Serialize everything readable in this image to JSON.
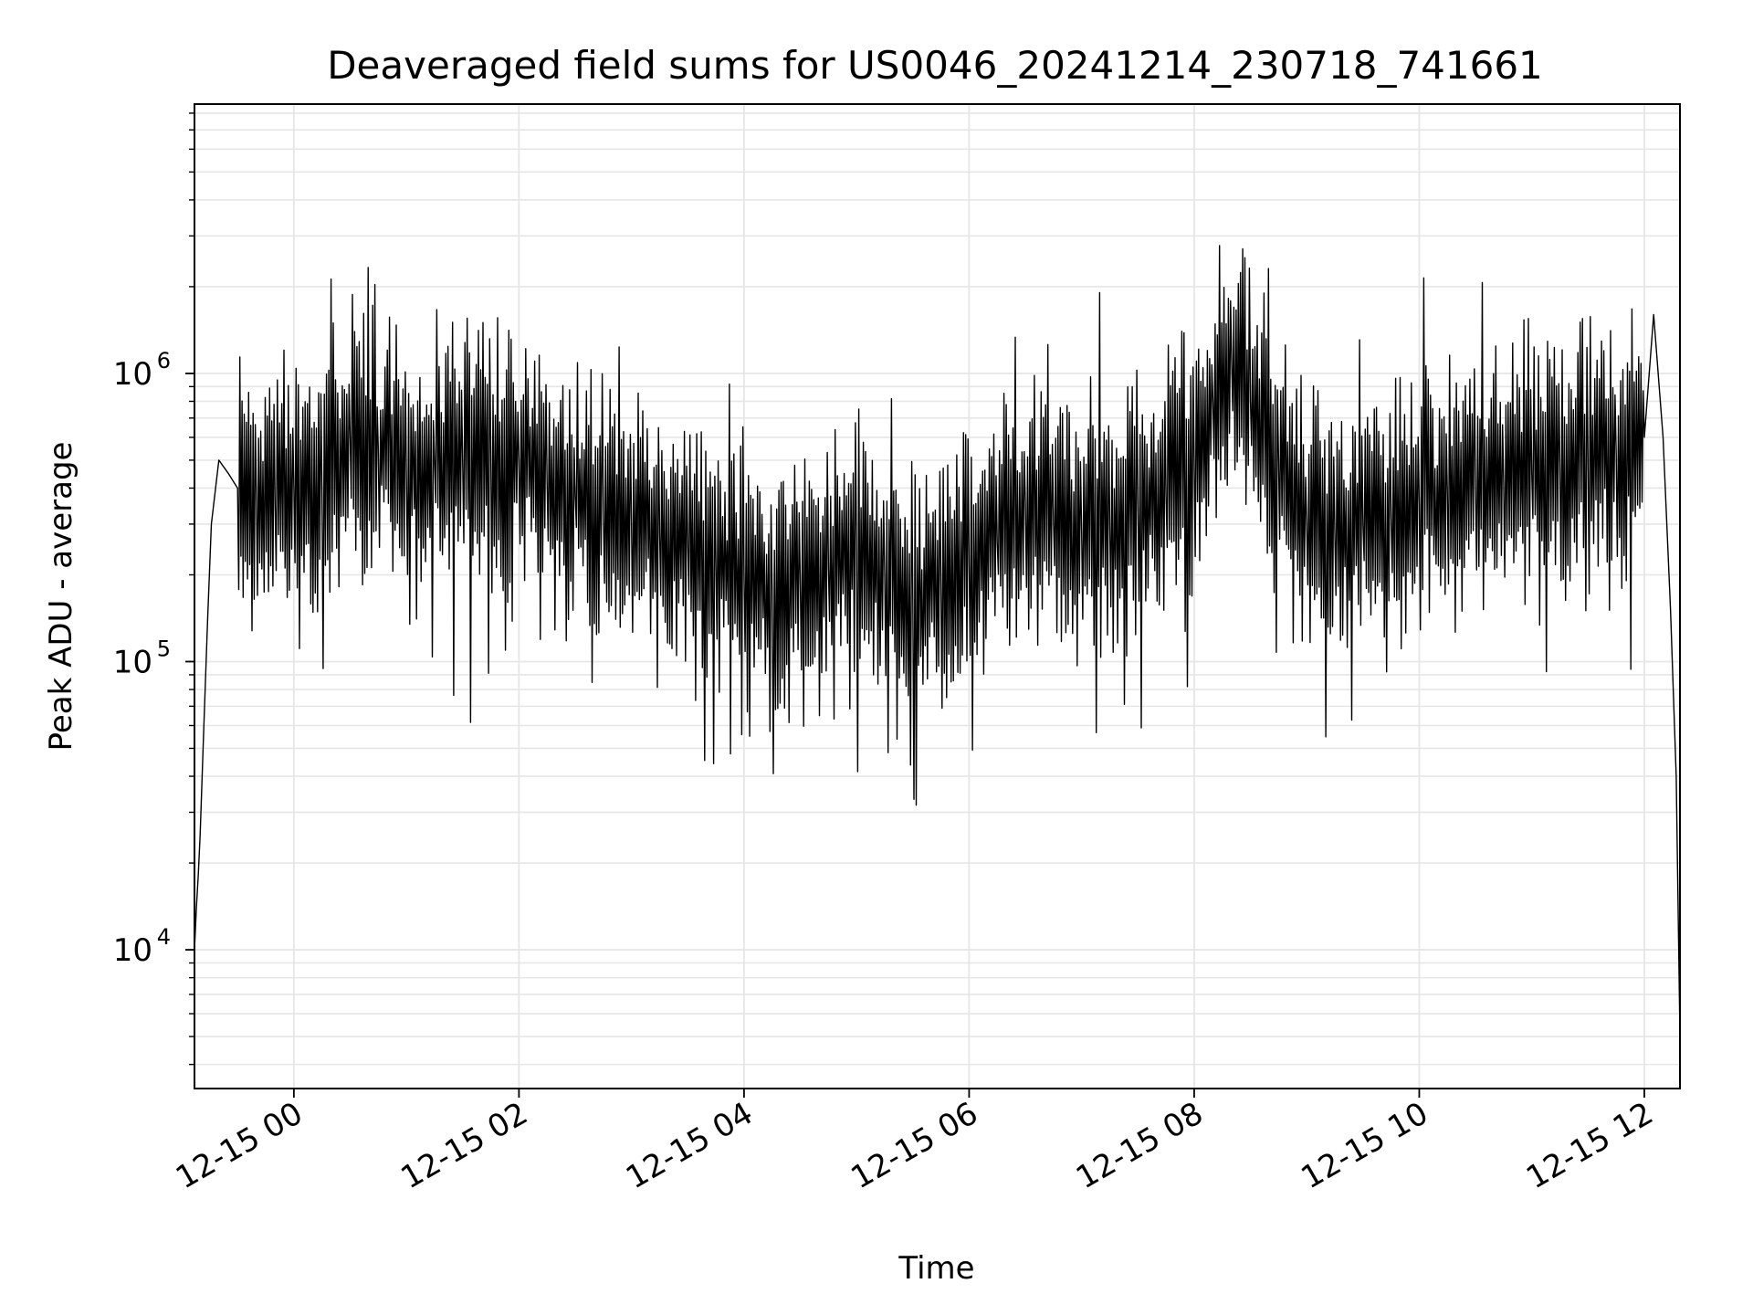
{
  "chart_data": {
    "type": "line",
    "title": "Deaveraged field sums for US0046_20241214_230718_741661",
    "xlabel": "Time",
    "ylabel": "Peak ADU - average",
    "yscale": "log",
    "grid": true,
    "legend": "none",
    "line_color": "#000000",
    "grid_color": "#e6e6e6",
    "xlim": [
      "2024-12-14 23:07",
      "2024-12-15 12:19"
    ],
    "ylim": [
      3300,
      8600000
    ],
    "x_ticks": [
      {
        "value": "2024-12-15 00:00",
        "label": "12-15 00"
      },
      {
        "value": "2024-12-15 02:00",
        "label": "12-15 02"
      },
      {
        "value": "2024-12-15 04:00",
        "label": "12-15 04"
      },
      {
        "value": "2024-12-15 06:00",
        "label": "12-15 06"
      },
      {
        "value": "2024-12-15 08:00",
        "label": "12-15 08"
      },
      {
        "value": "2024-12-15 10:00",
        "label": "12-15 10"
      },
      {
        "value": "2024-12-15 12:00",
        "label": "12-15 12"
      }
    ],
    "y_ticks": [
      {
        "value": 10000,
        "base": "10",
        "exp": "4"
      },
      {
        "value": 100000,
        "base": "10",
        "exp": "5"
      },
      {
        "value": 1000000,
        "base": "10",
        "exp": "6"
      }
    ],
    "series": [
      {
        "x": [
          "2024-12-14 23:07",
          "2024-12-14 23:08",
          "2024-12-14 23:09",
          "2024-12-14 23:10",
          "2024-12-14 23:12",
          "2024-12-14 23:14",
          "2024-12-14 23:16",
          "2024-12-14 23:20",
          "2024-12-14 23:25",
          "2024-12-14 23:30",
          "2024-12-14 23:40",
          "2024-12-14 23:50",
          "2024-12-15 00:00",
          "2024-12-15 00:15",
          "2024-12-15 00:30",
          "2024-12-15 00:45",
          "2024-12-15 01:00",
          "2024-12-15 01:15",
          "2024-12-15 01:30",
          "2024-12-15 01:45",
          "2024-12-15 02:00",
          "2024-12-15 02:15",
          "2024-12-15 02:30",
          "2024-12-15 02:45",
          "2024-12-15 03:00",
          "2024-12-15 03:15",
          "2024-12-15 03:30",
          "2024-12-15 03:45",
          "2024-12-15 04:00",
          "2024-12-15 04:15",
          "2024-12-15 04:30",
          "2024-12-15 04:45",
          "2024-12-15 05:00",
          "2024-12-15 05:15",
          "2024-12-15 05:30",
          "2024-12-15 05:45",
          "2024-12-15 06:00",
          "2024-12-15 06:15",
          "2024-12-15 06:30",
          "2024-12-15 06:45",
          "2024-12-15 07:00",
          "2024-12-15 07:15",
          "2024-12-15 07:30",
          "2024-12-15 07:45",
          "2024-12-15 08:00",
          "2024-12-15 08:10",
          "2024-12-15 08:20",
          "2024-12-15 08:30",
          "2024-12-15 08:45",
          "2024-12-15 09:00",
          "2024-12-15 09:15",
          "2024-12-15 09:30",
          "2024-12-15 09:45",
          "2024-12-15 10:00",
          "2024-12-15 10:15",
          "2024-12-15 10:30",
          "2024-12-15 10:45",
          "2024-12-15 11:00",
          "2024-12-15 11:15",
          "2024-12-15 11:30",
          "2024-12-15 11:45",
          "2024-12-15 12:00",
          "2024-12-15 12:05",
          "2024-12-15 12:10",
          "2024-12-15 12:14",
          "2024-12-15 12:17",
          "2024-12-15 12:19"
        ],
        "y": [
          10000,
          14000,
          18000,
          25000,
          60000,
          140000,
          300000,
          500000,
          450000,
          400000,
          380000,
          350000,
          400000,
          380000,
          600000,
          550000,
          450000,
          500000,
          480000,
          520000,
          500000,
          420000,
          380000,
          330000,
          300000,
          280000,
          250000,
          220000,
          200000,
          180000,
          190000,
          210000,
          250000,
          200000,
          160000,
          180000,
          220000,
          260000,
          350000,
          300000,
          280000,
          300000,
          350000,
          380000,
          500000,
          800000,
          1100000,
          800000,
          500000,
          300000,
          280000,
          300000,
          320000,
          350000,
          380000,
          400000,
          420000,
          450000,
          480000,
          500000,
          520000,
          600000,
          1600000,
          600000,
          150000,
          40000,
          5000
        ]
      }
    ]
  }
}
